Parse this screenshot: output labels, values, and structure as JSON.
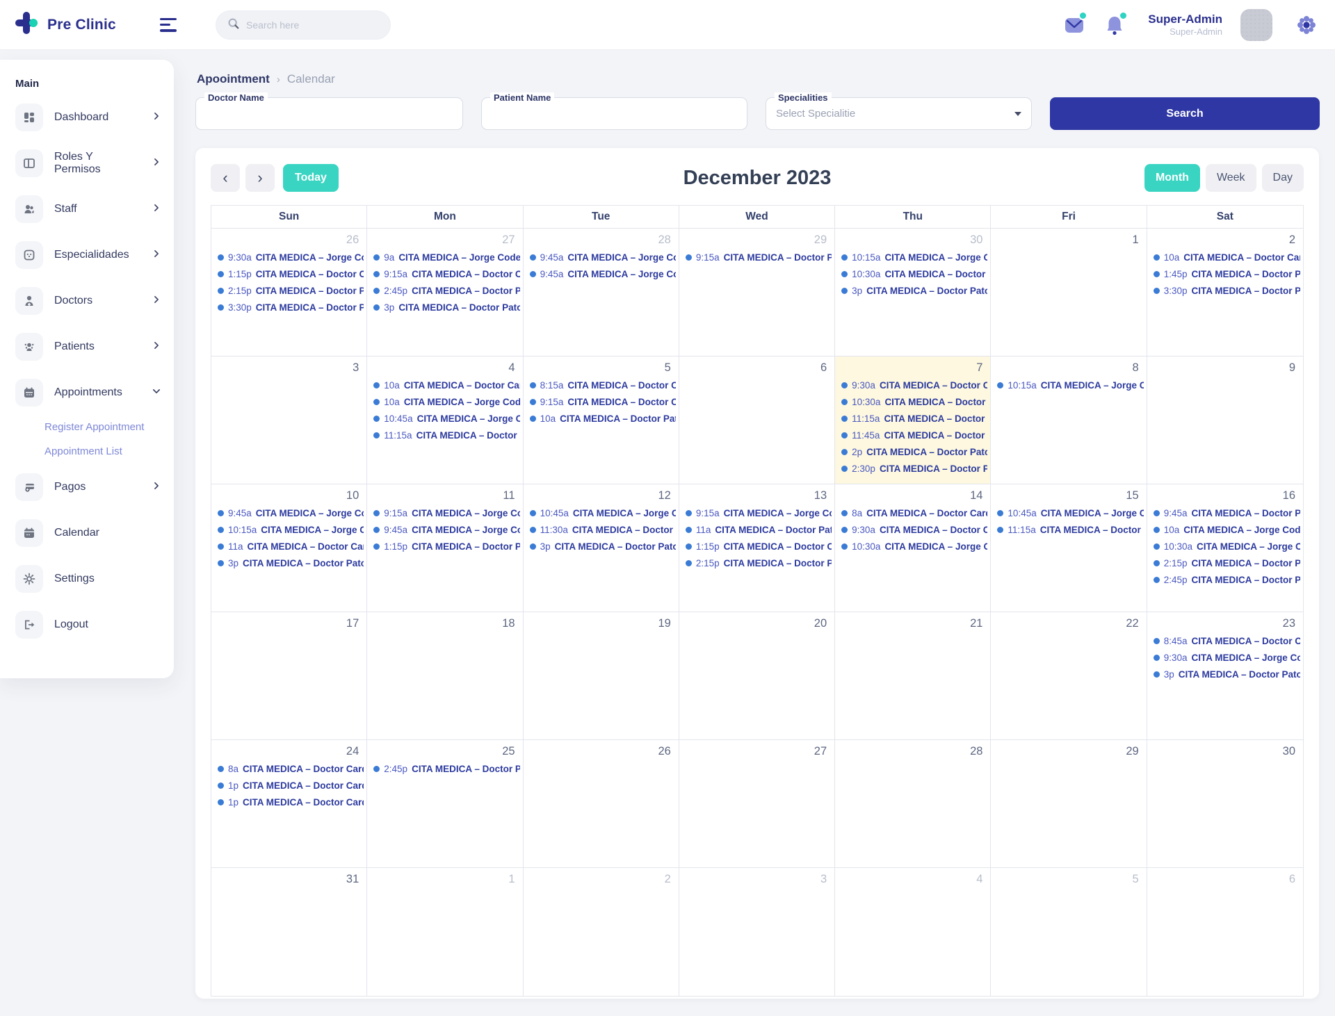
{
  "colors": {
    "brand_navy": "#2a2f8d",
    "primary_button": "#2e37a4",
    "teal_accent": "#3ad5c2",
    "event_dot": "#3a7bd5",
    "event_text": "#2c3a9e",
    "today_cell_bg": "#fdf8df",
    "page_bg": "#f3f4f7"
  },
  "header": {
    "brand": "Pre Clinic",
    "search_placeholder": "Search here",
    "user_name": "Super-Admin",
    "user_role": "Super-Admin"
  },
  "sidebar": {
    "section": "Main",
    "items": [
      {
        "label": "Dashboard",
        "icon": "dashboard-icon",
        "chevron": "right"
      },
      {
        "label": "Roles Y Permisos",
        "icon": "roles-icon",
        "chevron": "right"
      },
      {
        "label": "Staff",
        "icon": "staff-icon",
        "chevron": "right"
      },
      {
        "label": "Especialidades",
        "icon": "specialties-icon",
        "chevron": "right"
      },
      {
        "label": "Doctors",
        "icon": "doctor-icon",
        "chevron": "right"
      },
      {
        "label": "Patients",
        "icon": "patients-icon",
        "chevron": "right"
      },
      {
        "label": "Appointments",
        "icon": "appointments-icon",
        "chevron": "down",
        "children": [
          "Register Appointment",
          "Appointment List"
        ]
      },
      {
        "label": "Pagos",
        "icon": "payments-icon",
        "chevron": "right"
      },
      {
        "label": "Calendar",
        "icon": "calendar-icon",
        "chevron": "none"
      },
      {
        "label": "Settings",
        "icon": "settings-icon",
        "chevron": "none"
      }
    ],
    "logout_label": "Logout"
  },
  "breadcrumb": {
    "parent": "Apoointment",
    "current": "Calendar"
  },
  "filters": {
    "doctor_label": "Doctor Name",
    "patient_label": "Patient Name",
    "specialities_label": "Specialities",
    "specialities_value": "Select Specialitie",
    "search_button": "Search"
  },
  "calendar": {
    "title": "December 2023",
    "today_button": "Today",
    "views": [
      "Month",
      "Week",
      "Day"
    ],
    "active_view": "Month",
    "day_headers": [
      "Sun",
      "Mon",
      "Tue",
      "Wed",
      "Thu",
      "Fri",
      "Sat"
    ],
    "weeks": [
      [
        {
          "day": "26",
          "muted": true,
          "events": [
            {
              "time": "9:30a",
              "title": "CITA MEDICA – Jorge Codes"
            },
            {
              "time": "1:15p",
              "title": "CITA MEDICA – Doctor Cardio"
            },
            {
              "time": "2:15p",
              "title": "CITA MEDICA – Doctor Patolo"
            },
            {
              "time": "3:30p",
              "title": "CITA MEDICA – Doctor Patol"
            }
          ]
        },
        {
          "day": "27",
          "muted": true,
          "events": [
            {
              "time": "9a",
              "title": "CITA MEDICA – Jorge Codes – C"
            },
            {
              "time": "9:15a",
              "title": "CITA MEDICA – Doctor Cardi"
            },
            {
              "time": "2:45p",
              "title": "CITA MEDICA – Doctor Patol"
            },
            {
              "time": "3p",
              "title": "CITA MEDICA – Doctor Patologi"
            }
          ]
        },
        {
          "day": "28",
          "muted": true,
          "events": [
            {
              "time": "9:45a",
              "title": "CITA MEDICA – Jorge Codes"
            },
            {
              "time": "9:45a",
              "title": "CITA MEDICA – Jorge Codes"
            }
          ]
        },
        {
          "day": "29",
          "muted": true,
          "events": [
            {
              "time": "9:15a",
              "title": "CITA MEDICA – Doctor Patolo"
            }
          ]
        },
        {
          "day": "30",
          "muted": true,
          "events": [
            {
              "time": "10:15a",
              "title": "CITA MEDICA – Jorge Codes"
            },
            {
              "time": "10:30a",
              "title": "CITA MEDICA – Doctor Carc"
            },
            {
              "time": "3p",
              "title": "CITA MEDICA – Doctor Patologi"
            }
          ]
        },
        {
          "day": "1",
          "muted": false,
          "events": []
        },
        {
          "day": "2",
          "muted": false,
          "events": [
            {
              "time": "10a",
              "title": "CITA MEDICA – Doctor Cardiol"
            },
            {
              "time": "1:45p",
              "title": "CITA MEDICA – Doctor Patolo"
            },
            {
              "time": "3:30p",
              "title": "CITA MEDICA – Doctor Patol"
            }
          ]
        }
      ],
      [
        {
          "day": "3",
          "muted": false,
          "events": []
        },
        {
          "day": "4",
          "muted": false,
          "events": [
            {
              "time": "10a",
              "title": "CITA MEDICA – Doctor Cardiol"
            },
            {
              "time": "10a",
              "title": "CITA MEDICA – Jorge Codes –"
            },
            {
              "time": "10:45a",
              "title": "CITA MEDICA – Jorge Codes"
            },
            {
              "time": "11:15a",
              "title": "CITA MEDICA – Doctor Patolo"
            }
          ]
        },
        {
          "day": "5",
          "muted": false,
          "events": [
            {
              "time": "8:15a",
              "title": "CITA MEDICA – Doctor Cardi"
            },
            {
              "time": "9:15a",
              "title": "CITA MEDICA – Doctor Cardi"
            },
            {
              "time": "10a",
              "title": "CITA MEDICA – Doctor Patolog"
            }
          ]
        },
        {
          "day": "6",
          "muted": false,
          "events": []
        },
        {
          "day": "7",
          "muted": false,
          "today": true,
          "events": [
            {
              "time": "9:30a",
              "title": "CITA MEDICA – Doctor Card"
            },
            {
              "time": "10:30a",
              "title": "CITA MEDICA – Doctor Carc"
            },
            {
              "time": "11:15a",
              "title": "CITA MEDICA – Doctor Cardi"
            },
            {
              "time": "11:45a",
              "title": "CITA MEDICA – Doctor Patol"
            },
            {
              "time": "2p",
              "title": "CITA MEDICA – Doctor Patologi"
            },
            {
              "time": "2:30p",
              "title": "CITA MEDICA – Doctor Patol"
            }
          ]
        },
        {
          "day": "8",
          "muted": false,
          "events": [
            {
              "time": "10:15a",
              "title": "CITA MEDICA – Jorge Codes"
            }
          ]
        },
        {
          "day": "9",
          "muted": false,
          "events": []
        }
      ],
      [
        {
          "day": "10",
          "muted": false,
          "events": [
            {
              "time": "9:45a",
              "title": "CITA MEDICA – Jorge Codes"
            },
            {
              "time": "10:15a",
              "title": "CITA MEDICA – Jorge Codes"
            },
            {
              "time": "11a",
              "title": "CITA MEDICA – Doctor Cardiolo"
            },
            {
              "time": "3p",
              "title": "CITA MEDICA – Doctor Patologi"
            }
          ]
        },
        {
          "day": "11",
          "muted": false,
          "events": [
            {
              "time": "9:15a",
              "title": "CITA MEDICA – Jorge Codes"
            },
            {
              "time": "9:45a",
              "title": "CITA MEDICA – Jorge Codes"
            },
            {
              "time": "1:15p",
              "title": "CITA MEDICA – Doctor Patolo"
            }
          ]
        },
        {
          "day": "12",
          "muted": false,
          "events": [
            {
              "time": "10:45a",
              "title": "CITA MEDICA – Jorge Code"
            },
            {
              "time": "11:30a",
              "title": "CITA MEDICA – Doctor Card"
            },
            {
              "time": "3p",
              "title": "CITA MEDICA – Doctor Patologi"
            }
          ]
        },
        {
          "day": "13",
          "muted": false,
          "events": [
            {
              "time": "9:15a",
              "title": "CITA MEDICA – Jorge Codes"
            },
            {
              "time": "11a",
              "title": "CITA MEDICA – Doctor Patologi"
            },
            {
              "time": "1:15p",
              "title": "CITA MEDICA – Doctor Cardio"
            },
            {
              "time": "2:15p",
              "title": "CITA MEDICA – Doctor Patolo"
            }
          ]
        },
        {
          "day": "14",
          "muted": false,
          "events": [
            {
              "time": "8a",
              "title": "CITA MEDICA – Doctor Cardiolo"
            },
            {
              "time": "9:30a",
              "title": "CITA MEDICA – Doctor Card"
            },
            {
              "time": "10:30a",
              "title": "CITA MEDICA – Jorge Codes"
            }
          ]
        },
        {
          "day": "15",
          "muted": false,
          "events": [
            {
              "time": "10:45a",
              "title": "CITA MEDICA – Jorge Code"
            },
            {
              "time": "11:15a",
              "title": "CITA MEDICA – Doctor Cardi"
            }
          ]
        },
        {
          "day": "16",
          "muted": false,
          "events": [
            {
              "time": "9:45a",
              "title": "CITA MEDICA – Doctor Patol"
            },
            {
              "time": "10a",
              "title": "CITA MEDICA – Jorge Codes –"
            },
            {
              "time": "10:30a",
              "title": "CITA MEDICA – Jorge Codes"
            },
            {
              "time": "2:15p",
              "title": "CITA MEDICA – Doctor Patolo"
            },
            {
              "time": "2:45p",
              "title": "CITA MEDICA – Doctor Patol"
            }
          ]
        }
      ],
      [
        {
          "day": "17",
          "muted": false,
          "events": []
        },
        {
          "day": "18",
          "muted": false,
          "events": []
        },
        {
          "day": "19",
          "muted": false,
          "events": []
        },
        {
          "day": "20",
          "muted": false,
          "events": []
        },
        {
          "day": "21",
          "muted": false,
          "events": []
        },
        {
          "day": "22",
          "muted": false,
          "events": []
        },
        {
          "day": "23",
          "muted": false,
          "events": [
            {
              "time": "8:45a",
              "title": "CITA MEDICA – Doctor Card"
            },
            {
              "time": "9:30a",
              "title": "CITA MEDICA – Jorge Codes"
            },
            {
              "time": "3p",
              "title": "CITA MEDICA – Doctor Patologi"
            }
          ]
        }
      ],
      [
        {
          "day": "24",
          "muted": false,
          "events": [
            {
              "time": "8a",
              "title": "CITA MEDICA – Doctor Cardiolo"
            },
            {
              "time": "1p",
              "title": "CITA MEDICA – Doctor Cardiolo"
            },
            {
              "time": "1p",
              "title": "CITA MEDICA – Doctor Cardiolo"
            }
          ]
        },
        {
          "day": "25",
          "muted": false,
          "events": [
            {
              "time": "2:45p",
              "title": "CITA MEDICA – Doctor Patol"
            }
          ]
        },
        {
          "day": "26",
          "muted": false,
          "events": []
        },
        {
          "day": "27",
          "muted": false,
          "events": []
        },
        {
          "day": "28",
          "muted": false,
          "events": []
        },
        {
          "day": "29",
          "muted": false,
          "events": []
        },
        {
          "day": "30",
          "muted": false,
          "events": []
        }
      ],
      [
        {
          "day": "31",
          "muted": false,
          "events": []
        },
        {
          "day": "1",
          "muted": true,
          "events": []
        },
        {
          "day": "2",
          "muted": true,
          "events": []
        },
        {
          "day": "3",
          "muted": true,
          "events": []
        },
        {
          "day": "4",
          "muted": true,
          "events": []
        },
        {
          "day": "5",
          "muted": true,
          "events": []
        },
        {
          "day": "6",
          "muted": true,
          "events": []
        }
      ]
    ]
  }
}
